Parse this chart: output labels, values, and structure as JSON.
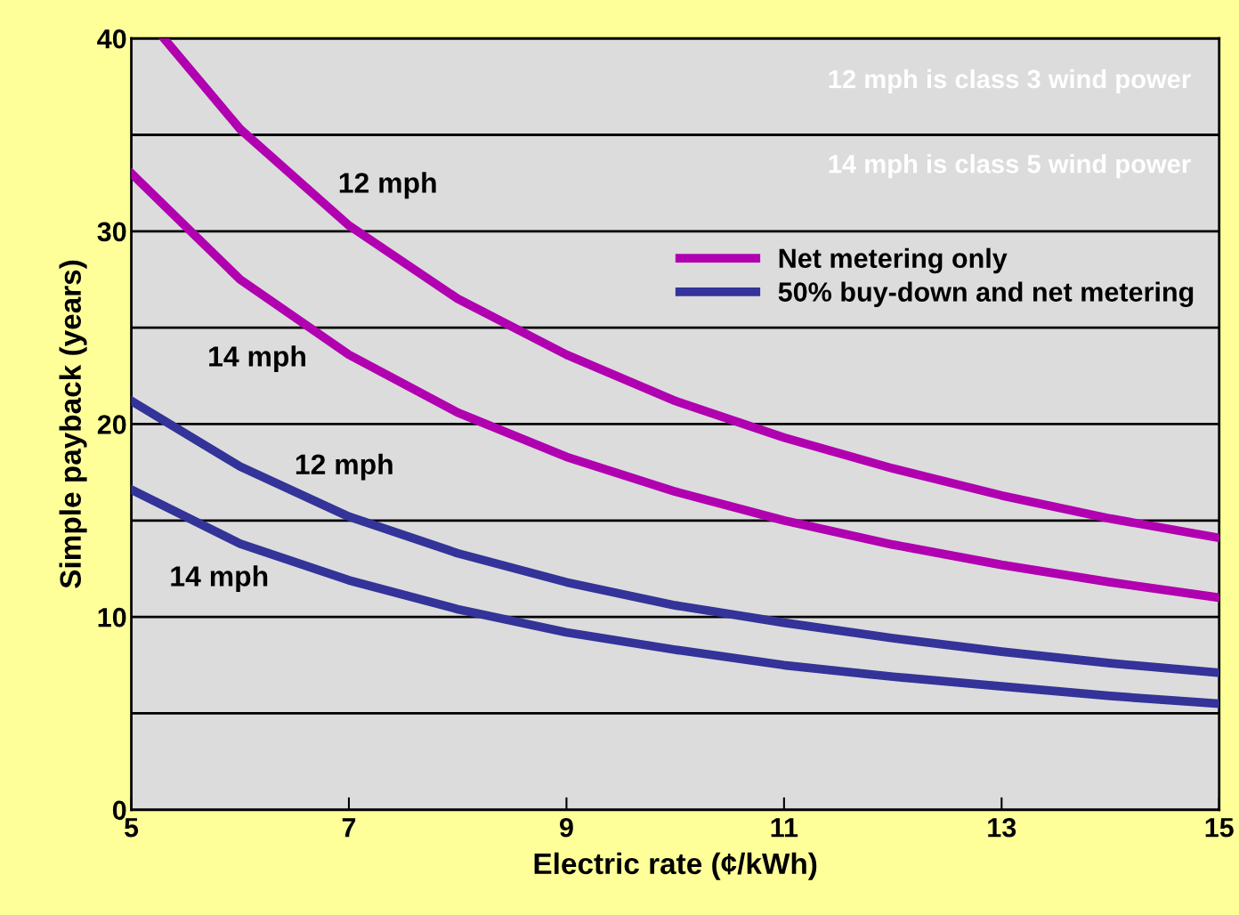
{
  "chart_data": {
    "type": "line",
    "xlabel": "Electric rate (¢/kWh)",
    "ylabel": "Simple payback (years)",
    "xlim": [
      5,
      15
    ],
    "xticks": [
      5,
      7,
      9,
      11,
      13,
      15
    ],
    "ylim": [
      0,
      40
    ],
    "yticks": [
      0,
      {
        "value": 5,
        "label": null
      },
      10,
      {
        "value": 15,
        "label": null
      },
      20,
      {
        "value": 25,
        "label": null
      },
      30,
      {
        "value": 35,
        "label": null
      },
      40
    ],
    "grid": "y",
    "legend": "top right",
    "marker": "none",
    "line_style": "solid",
    "series": [
      {
        "name": "Net metering only",
        "color": "#b000b0",
        "x": [
          5.3,
          6,
          7,
          8,
          9,
          10,
          11,
          12,
          13,
          14,
          15
        ],
        "values": [
          40,
          35.3,
          30.3,
          26.5,
          23.6,
          21.2,
          19.3,
          17.7,
          16.3,
          15.1,
          14.1
        ]
      },
      {
        "color": "#b000b0",
        "x": [
          5,
          6,
          7,
          8,
          9,
          10,
          11,
          12,
          13,
          14,
          15
        ],
        "values": [
          33,
          27.5,
          23.6,
          20.6,
          18.3,
          16.5,
          15.0,
          13.75,
          12.7,
          11.8,
          11.0
        ]
      },
      {
        "name": "50% buy-down and net metering",
        "color": "#333399",
        "x": [
          5,
          6,
          7,
          8,
          9,
          10,
          11,
          12,
          13,
          14,
          15
        ],
        "values": [
          21.2,
          17.8,
          15.2,
          13.3,
          11.8,
          10.6,
          9.7,
          8.9,
          8.2,
          7.6,
          7.1
        ]
      },
      {
        "color": "#333399",
        "x": [
          5,
          6,
          7,
          8,
          9,
          10,
          11,
          12,
          13,
          14,
          15
        ],
        "values": [
          16.6,
          13.8,
          11.9,
          10.4,
          9.2,
          8.3,
          7.5,
          6.9,
          6.4,
          5.9,
          5.5
        ]
      }
    ],
    "annotations": [
      "12 mph",
      "14 mph",
      "12 mph",
      "14 mph",
      "12 mph is class 3 wind power",
      "14 mph is class 5 wind power"
    ]
  }
}
